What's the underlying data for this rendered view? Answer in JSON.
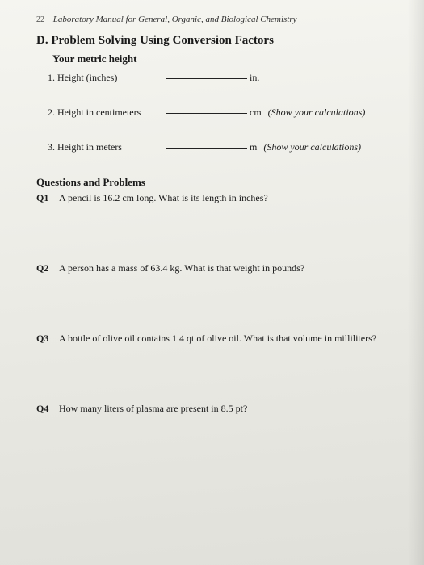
{
  "header": {
    "page_number": "22",
    "running_title": "Laboratory Manual for General, Organic, and Biological Chemistry"
  },
  "section": {
    "letter": "D.",
    "title": "Problem Solving Using Conversion Factors",
    "subtitle": "Your metric height"
  },
  "items": [
    {
      "num": "1.",
      "label": "Height (inches)",
      "unit": "in.",
      "note": ""
    },
    {
      "num": "2.",
      "label": "Height in centimeters",
      "unit": "cm",
      "note": "(Show your calculations)"
    },
    {
      "num": "3.",
      "label": "Height in meters",
      "unit": "m",
      "note": "(Show your calculations)"
    }
  ],
  "questions_header": "Questions and Problems",
  "questions": [
    {
      "label": "Q1",
      "text": "A pencil is 16.2 cm long. What is its length in inches?"
    },
    {
      "label": "Q2",
      "text": "A person has a mass of 63.4 kg. What is that weight in pounds?"
    },
    {
      "label": "Q3",
      "text": "A bottle of olive oil contains 1.4 qt of olive oil. What is that volume in milliliters?"
    },
    {
      "label": "Q4",
      "text": "How many liters of plasma are present in 8.5 pt?"
    }
  ]
}
